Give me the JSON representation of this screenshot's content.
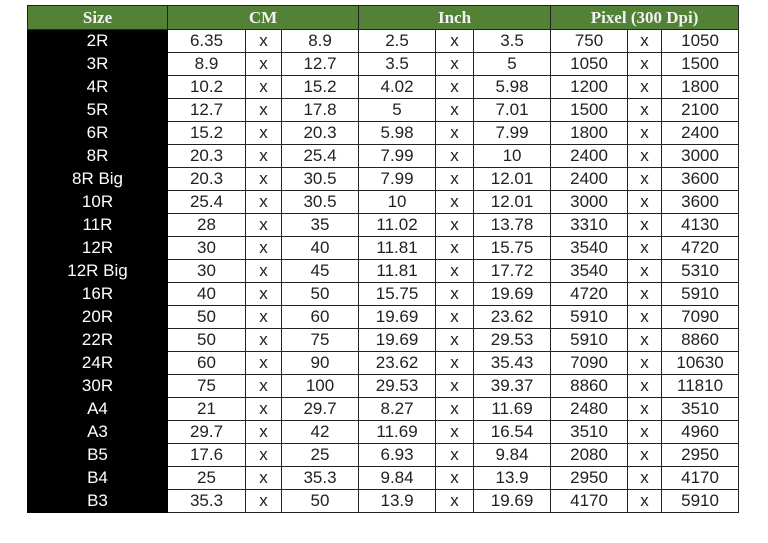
{
  "headers": {
    "size": "Size",
    "cm": "CM",
    "inch": "Inch",
    "pixel": "Pixel (300 Dpi)"
  },
  "sep": "x",
  "rows": [
    [
      "2R",
      "6.35",
      "8.9",
      "2.5",
      "3.5",
      "750",
      "1050"
    ],
    [
      "3R",
      "8.9",
      "12.7",
      "3.5",
      "5",
      "1050",
      "1500"
    ],
    [
      "4R",
      "10.2",
      "15.2",
      "4.02",
      "5.98",
      "1200",
      "1800"
    ],
    [
      "5R",
      "12.7",
      "17.8",
      "5",
      "7.01",
      "1500",
      "2100"
    ],
    [
      "6R",
      "15.2",
      "20.3",
      "5.98",
      "7.99",
      "1800",
      "2400"
    ],
    [
      "8R",
      "20.3",
      "25.4",
      "7.99",
      "10",
      "2400",
      "3000"
    ],
    [
      "8R Big",
      "20.3",
      "30.5",
      "7.99",
      "12.01",
      "2400",
      "3600"
    ],
    [
      "10R",
      "25.4",
      "30.5",
      "10",
      "12.01",
      "3000",
      "3600"
    ],
    [
      "11R",
      "28",
      "35",
      "11.02",
      "13.78",
      "3310",
      "4130"
    ],
    [
      "12R",
      "30",
      "40",
      "11.81",
      "15.75",
      "3540",
      "4720"
    ],
    [
      "12R Big",
      "30",
      "45",
      "11.81",
      "17.72",
      "3540",
      "5310"
    ],
    [
      "16R",
      "40",
      "50",
      "15.75",
      "19.69",
      "4720",
      "5910"
    ],
    [
      "20R",
      "50",
      "60",
      "19.69",
      "23.62",
      "5910",
      "7090"
    ],
    [
      "22R",
      "50",
      "75",
      "19.69",
      "29.53",
      "5910",
      "8860"
    ],
    [
      "24R",
      "60",
      "90",
      "23.62",
      "35.43",
      "7090",
      "10630"
    ],
    [
      "30R",
      "75",
      "100",
      "29.53",
      "39.37",
      "8860",
      "11810"
    ],
    [
      "A4",
      "21",
      "29.7",
      "8.27",
      "11.69",
      "2480",
      "3510"
    ],
    [
      "A3",
      "29.7",
      "42",
      "11.69",
      "16.54",
      "3510",
      "4960"
    ],
    [
      "B5",
      "17.6",
      "25",
      "6.93",
      "9.84",
      "2080",
      "2950"
    ],
    [
      "B4",
      "25",
      "35.3",
      "9.84",
      "13.9",
      "2950",
      "4170"
    ],
    [
      "B3",
      "35.3",
      "50",
      "13.9",
      "19.69",
      "4170",
      "5910"
    ]
  ]
}
